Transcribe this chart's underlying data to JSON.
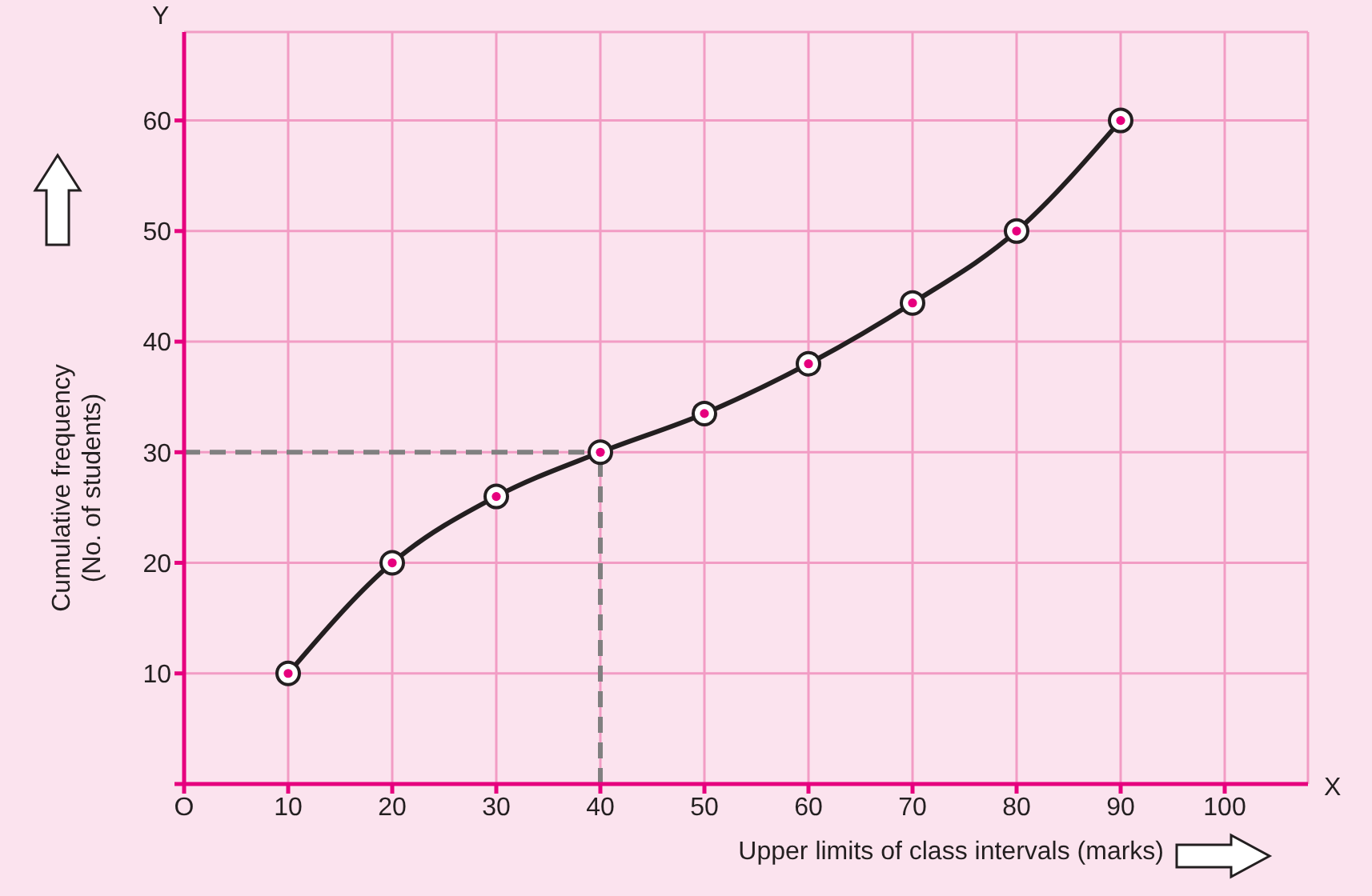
{
  "chart_data": {
    "type": "line",
    "xlabel": "Upper limits of class intervals (marks)",
    "ylabel": "Cumulative frequency\n(No. of students)",
    "x": [
      10,
      20,
      30,
      40,
      50,
      60,
      70,
      80,
      90
    ],
    "series": [
      {
        "color": "#231f20",
        "values": [
          10,
          20,
          26,
          30,
          33.5,
          38,
          43.5,
          50,
          60
        ]
      }
    ],
    "xlim": [
      0,
      108
    ],
    "ylim": [
      0,
      68
    ],
    "xticks": [
      {
        "value": 0,
        "label": "O"
      },
      10,
      20,
      30,
      40,
      50,
      60,
      70,
      80,
      90,
      100
    ],
    "yticks": [
      {
        "value": 0,
        "label": null
      },
      10,
      20,
      30,
      40,
      50,
      60
    ],
    "ref_lines": [
      {
        "axis": "y",
        "value": 30,
        "color": "#808080",
        "line_style": "dashed"
      },
      {
        "axis": "x",
        "value": 40,
        "color": "#808080",
        "line_style": "dashed"
      }
    ],
    "annotations": [
      "X",
      "Y"
    ],
    "grid": true,
    "marker": "circle",
    "line_style": "solid"
  }
}
